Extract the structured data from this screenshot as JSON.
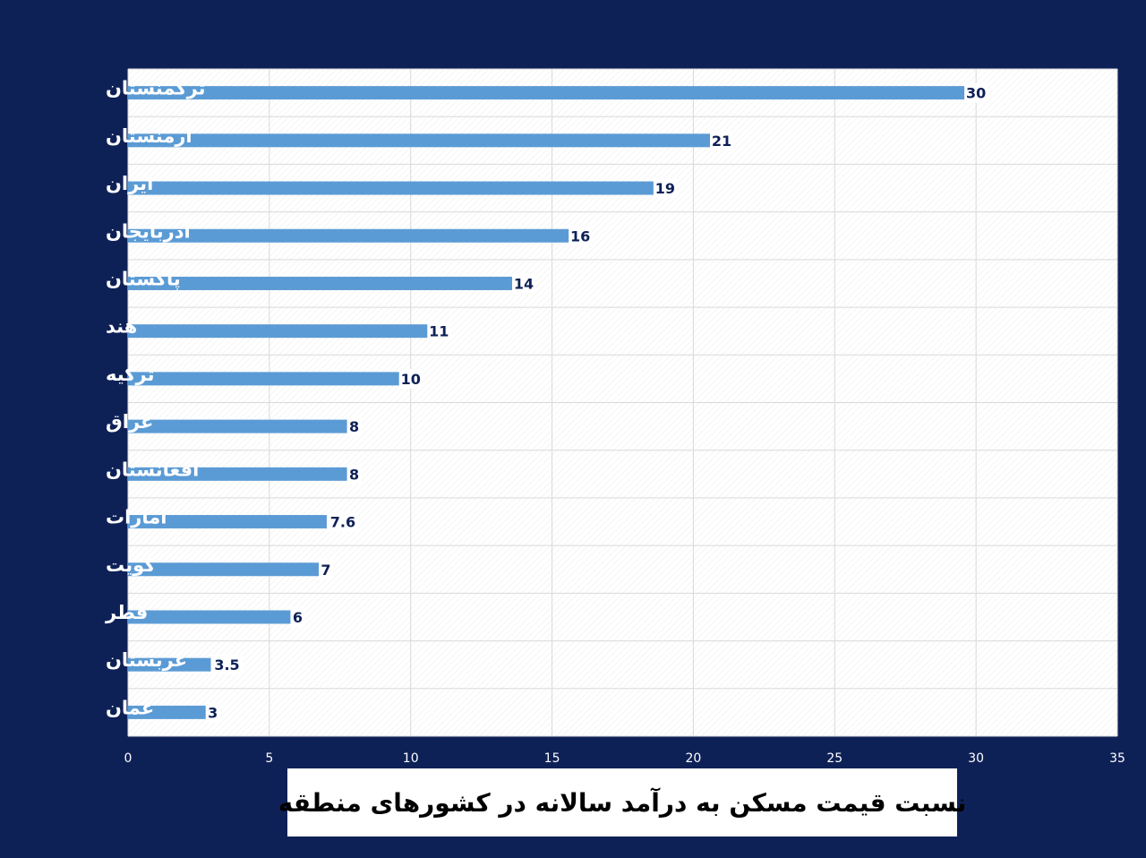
{
  "chart_data": {
    "type": "bar",
    "orientation": "horizontal",
    "title": "نسبت قیمت مسکن به درآمد سالانه در کشورهای منطقه",
    "categories": [
      "ترکمنستان",
      "ارمنستان",
      "ایران",
      "آذربایجان",
      "پاکستان",
      "هند",
      "ترکیه",
      "عراق",
      "افغانستان",
      "امارات",
      "کویت",
      "قطر",
      "عربستان",
      "عمان"
    ],
    "values": [
      30,
      21,
      19,
      16,
      14,
      11,
      10,
      8,
      8,
      7.6,
      7,
      6,
      3.5,
      3
    ],
    "data_labels": [
      "30",
      "21",
      "19",
      "16",
      "14",
      "11",
      "10",
      "8",
      "8",
      "7.6",
      "7",
      "6",
      "3.5",
      "3"
    ],
    "xlim": [
      0,
      35
    ],
    "x_ticks": [
      "0",
      "5",
      "10",
      "15",
      "20",
      "25",
      "30",
      "35"
    ],
    "grid": true,
    "legend": "none",
    "colors": {
      "background": "#0e2157",
      "plot_background": "#ffffff",
      "bar": "#5b9bd5",
      "grid": "#d9d9d9",
      "data_label": "#0e2157"
    }
  }
}
